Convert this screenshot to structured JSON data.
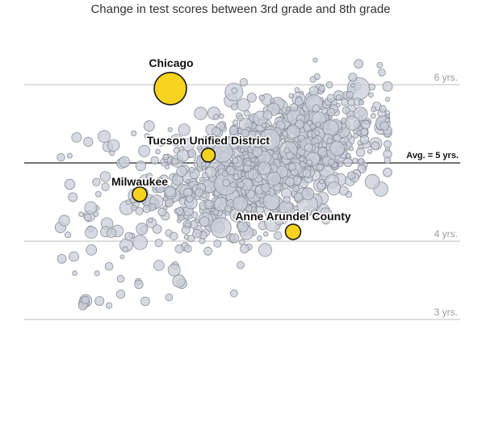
{
  "chart_data": {
    "type": "scatter",
    "title": "Change in test scores between 3rd grade and 8th grade",
    "xlabel": "",
    "ylabel": "",
    "ylim": [
      2.9,
      6.2
    ],
    "y_ticks": [
      {
        "value": 6,
        "label": "6 yrs."
      },
      {
        "value": 4,
        "label": "4 yrs."
      },
      {
        "value": 3,
        "label": "3 yrs."
      }
    ],
    "average": {
      "value": 5,
      "label": "Avg. = 5 yrs."
    },
    "colors": {
      "highlight": "#f7d21e",
      "dot": "#c9ced8",
      "dot_stroke": "#8a8f99"
    },
    "highlighted": [
      {
        "label": "Chicago",
        "y": 5.95
      },
      {
        "label": "Tucson Unified District",
        "y": 5.1
      },
      {
        "label": "Milwaukee",
        "y": 4.6
      },
      {
        "label": "Anne Arundel County",
        "y": 4.12
      }
    ]
  }
}
